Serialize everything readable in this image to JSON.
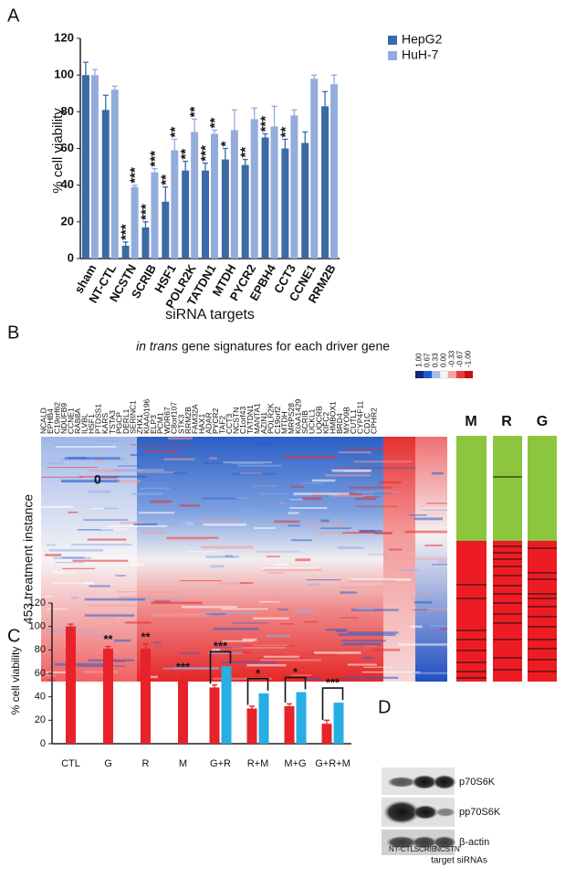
{
  "chart_data": [
    {
      "type": "bar",
      "panel": "A",
      "ylabel": "% cell viability",
      "xlabel": "siRNA  targets",
      "categories": [
        "sham",
        "NT-CTL",
        "NCSTN",
        "SCRIB",
        "HSF1",
        "POLR2K",
        "TATDN1",
        "MTDH",
        "PYCR2",
        "EPBH4",
        "CCT3",
        "CCNE1",
        "RRM2B"
      ],
      "series": [
        {
          "name": "HepG2",
          "color": "#3b6ba6",
          "values": [
            100,
            81,
            7,
            17,
            31,
            48,
            48,
            54,
            51,
            66,
            60,
            63,
            83
          ],
          "errors": [
            7,
            8,
            2,
            3,
            8,
            5,
            4,
            6,
            3,
            2,
            5,
            6,
            8
          ],
          "stars": [
            null,
            null,
            "***",
            "***",
            "**",
            "**",
            "***",
            "*",
            "**",
            "***",
            "**",
            null,
            null
          ]
        },
        {
          "name": "HuH-7",
          "color": "#93acdc",
          "values": [
            100,
            92,
            39,
            47,
            59,
            69,
            68,
            70,
            76,
            72,
            78,
            98,
            95
          ],
          "errors": [
            3,
            2,
            1,
            2,
            6,
            7,
            2,
            11,
            6,
            11,
            3,
            2,
            5
          ],
          "stars": [
            null,
            null,
            "***",
            "***",
            "**",
            "**",
            "**",
            null,
            null,
            null,
            null,
            null,
            null
          ]
        }
      ],
      "ylim": [
        0,
        120
      ],
      "yticks": [
        0,
        20,
        40,
        60,
        80,
        100,
        120
      ],
      "legend": "top-right"
    },
    {
      "type": "bar",
      "panel": "C",
      "ylabel": "% cell viability",
      "categories": [
        "CTL",
        "G",
        "R",
        "M",
        "G+R",
        "R+M",
        "M+G",
        "G+R+M"
      ],
      "series": [
        {
          "color": "#e8222a",
          "values": [
            100,
            81,
            81,
            53,
            48,
            30,
            32,
            17
          ],
          "errors": [
            2,
            2,
            4,
            6,
            2,
            2,
            2,
            3
          ],
          "stars": [
            null,
            "**",
            "**",
            "***",
            null,
            null,
            null,
            null
          ]
        },
        {
          "color": "#27aee4",
          "values": [
            null,
            null,
            null,
            null,
            66,
            43,
            44,
            35
          ],
          "errors": [
            null,
            null,
            null,
            null,
            0,
            0,
            0,
            0
          ],
          "stars": [
            null,
            null,
            null,
            null,
            "***",
            "*",
            "*",
            "***"
          ]
        }
      ],
      "ylim": [
        0,
        120
      ],
      "yticks": [
        0,
        20,
        40,
        60,
        80,
        100,
        120
      ]
    }
  ],
  "heatmap": {
    "panel": "B",
    "title_italic": "in trans",
    "title_rest": "gene signatures for each driver gene",
    "ylabel": "453 treatment instance",
    "marker": "0",
    "scale_labels": [
      "1.00",
      "0.67",
      "0.33",
      "0.00",
      "-0.33",
      "-0.67",
      "-1.00"
    ],
    "genes": [
      "NCALD",
      "EPHB4",
      "C19orf62",
      "NDUFB9",
      "CCNE1",
      "RAB8A",
      "ILVBL",
      "HSF1",
      "PTDSS1",
      "KARS",
      "TSTA3",
      "PGCP",
      "DERL1",
      "SERINC1",
      "ZHX1",
      "KIAA0196",
      "ELP3",
      "PCM1",
      "WDR67",
      "C8orf107",
      "STK3",
      "RRM2B",
      "FAM32A",
      "HAX1",
      "ADAR",
      "PYCR2",
      "TAF2",
      "CCT3",
      "NCSTN",
      "C1orf43",
      "TATDN1",
      "MANTA1",
      "AZIN1",
      "POLR2K",
      "C19orf2",
      "MTDH",
      "MRPS28",
      "KIAA1429",
      "SCRIB",
      "UCKL1",
      "UQCRB",
      "KIFC2",
      "HMBOX1",
      "BRD4",
      "MYO9B",
      "CUTL1",
      "CYP4F11",
      "CD1C",
      "CPHR2"
    ],
    "columns": [
      "M",
      "R",
      "G"
    ]
  },
  "blot": {
    "panel": "D",
    "bands": [
      "p70S6K",
      "pp70S6K",
      "β-actin"
    ],
    "lanes": [
      "NT-CTL",
      "SCRIB",
      "NCSTN"
    ],
    "xlabel": "target siRNAs"
  }
}
